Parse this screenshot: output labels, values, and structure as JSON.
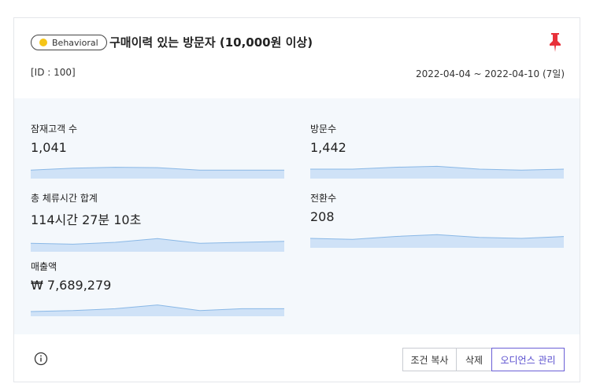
{
  "segment": {
    "badge": "Behavioral",
    "badge_color": "#f5c518",
    "title": "구매이력 있는 방문자 (10,000원 이상)",
    "id_text": "[ID : 100]",
    "period": "2022-04-04 ~ 2022-04-10 (7일)",
    "pin_color": "#e8313a"
  },
  "metrics": [
    {
      "label": "잠재고객 수",
      "value": "1,041",
      "trend": [
        0.55,
        0.45,
        0.4,
        0.42,
        0.55,
        0.55,
        0.55
      ]
    },
    {
      "label": "방문수",
      "value": "1,442",
      "trend": [
        0.5,
        0.5,
        0.4,
        0.35,
        0.5,
        0.55,
        0.5
      ]
    },
    {
      "label": "총 체류시간 합계",
      "value": "114시간 27분 10초",
      "trend": [
        0.55,
        0.6,
        0.5,
        0.3,
        0.55,
        0.5,
        0.45
      ]
    },
    {
      "label": "전환수",
      "value": "208",
      "trend": [
        0.5,
        0.55,
        0.4,
        0.3,
        0.45,
        0.5,
        0.4
      ]
    },
    {
      "label": "매출액",
      "value": "₩ 7,689,279",
      "trend": [
        0.75,
        0.7,
        0.6,
        0.4,
        0.7,
        0.6,
        0.6
      ]
    }
  ],
  "chart_style": {
    "line": "#8ab8e6",
    "fill": "#cfe2f7"
  },
  "footer": {
    "copy_label": "조건 복사",
    "delete_label": "삭제",
    "manage_label": "오디언스 관리"
  }
}
